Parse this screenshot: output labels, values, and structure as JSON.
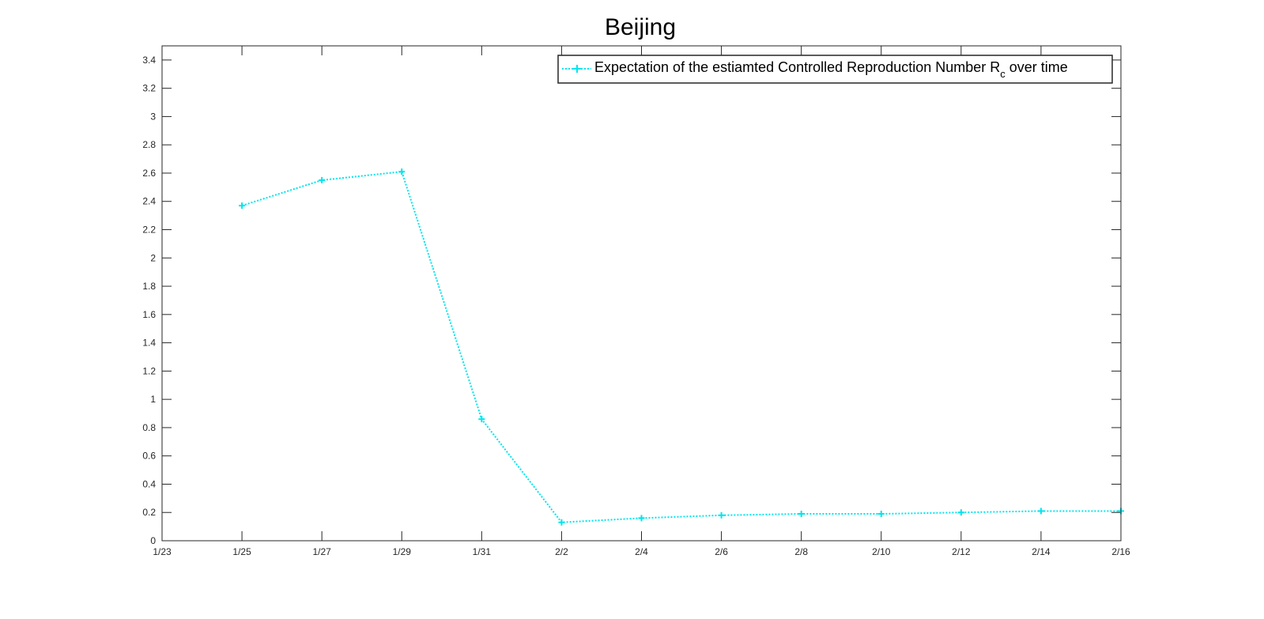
{
  "chart_data": {
    "type": "line",
    "title": "Beijing",
    "xlabel": "",
    "ylabel": "",
    "x_ticks": [
      "1/23",
      "1/25",
      "1/27",
      "1/29",
      "1/31",
      "2/2",
      "2/4",
      "2/6",
      "2/8",
      "2/10",
      "2/12",
      "2/14",
      "2/16"
    ],
    "y_ticks": [
      "0",
      "0.2",
      "0.4",
      "0.6",
      "0.8",
      "1",
      "1.2",
      "1.4",
      "1.6",
      "1.8",
      "2",
      "2.2",
      "2.4",
      "2.6",
      "2.8",
      "3",
      "3.2",
      "3.4"
    ],
    "ylim": [
      0,
      3.5
    ],
    "grid": false,
    "legend_position": "top-right",
    "series": [
      {
        "name": "Expectation of the estiamted Controlled Reproduction Number R_c over time",
        "legend_text": "Expectation of the estiamted Controlled Reproduction Number R",
        "legend_subscript": "c",
        "legend_suffix": " over time",
        "color": "#00e5ee",
        "line_style": "dotted",
        "marker": "plus",
        "x": [
          "1/25",
          "1/27",
          "1/29",
          "1/31",
          "2/2",
          "2/4",
          "2/6",
          "2/8",
          "2/10",
          "2/12",
          "2/14",
          "2/16"
        ],
        "values": [
          2.37,
          2.55,
          2.61,
          0.86,
          0.13,
          0.16,
          0.18,
          0.19,
          0.19,
          0.2,
          0.21,
          0.21
        ]
      }
    ]
  }
}
